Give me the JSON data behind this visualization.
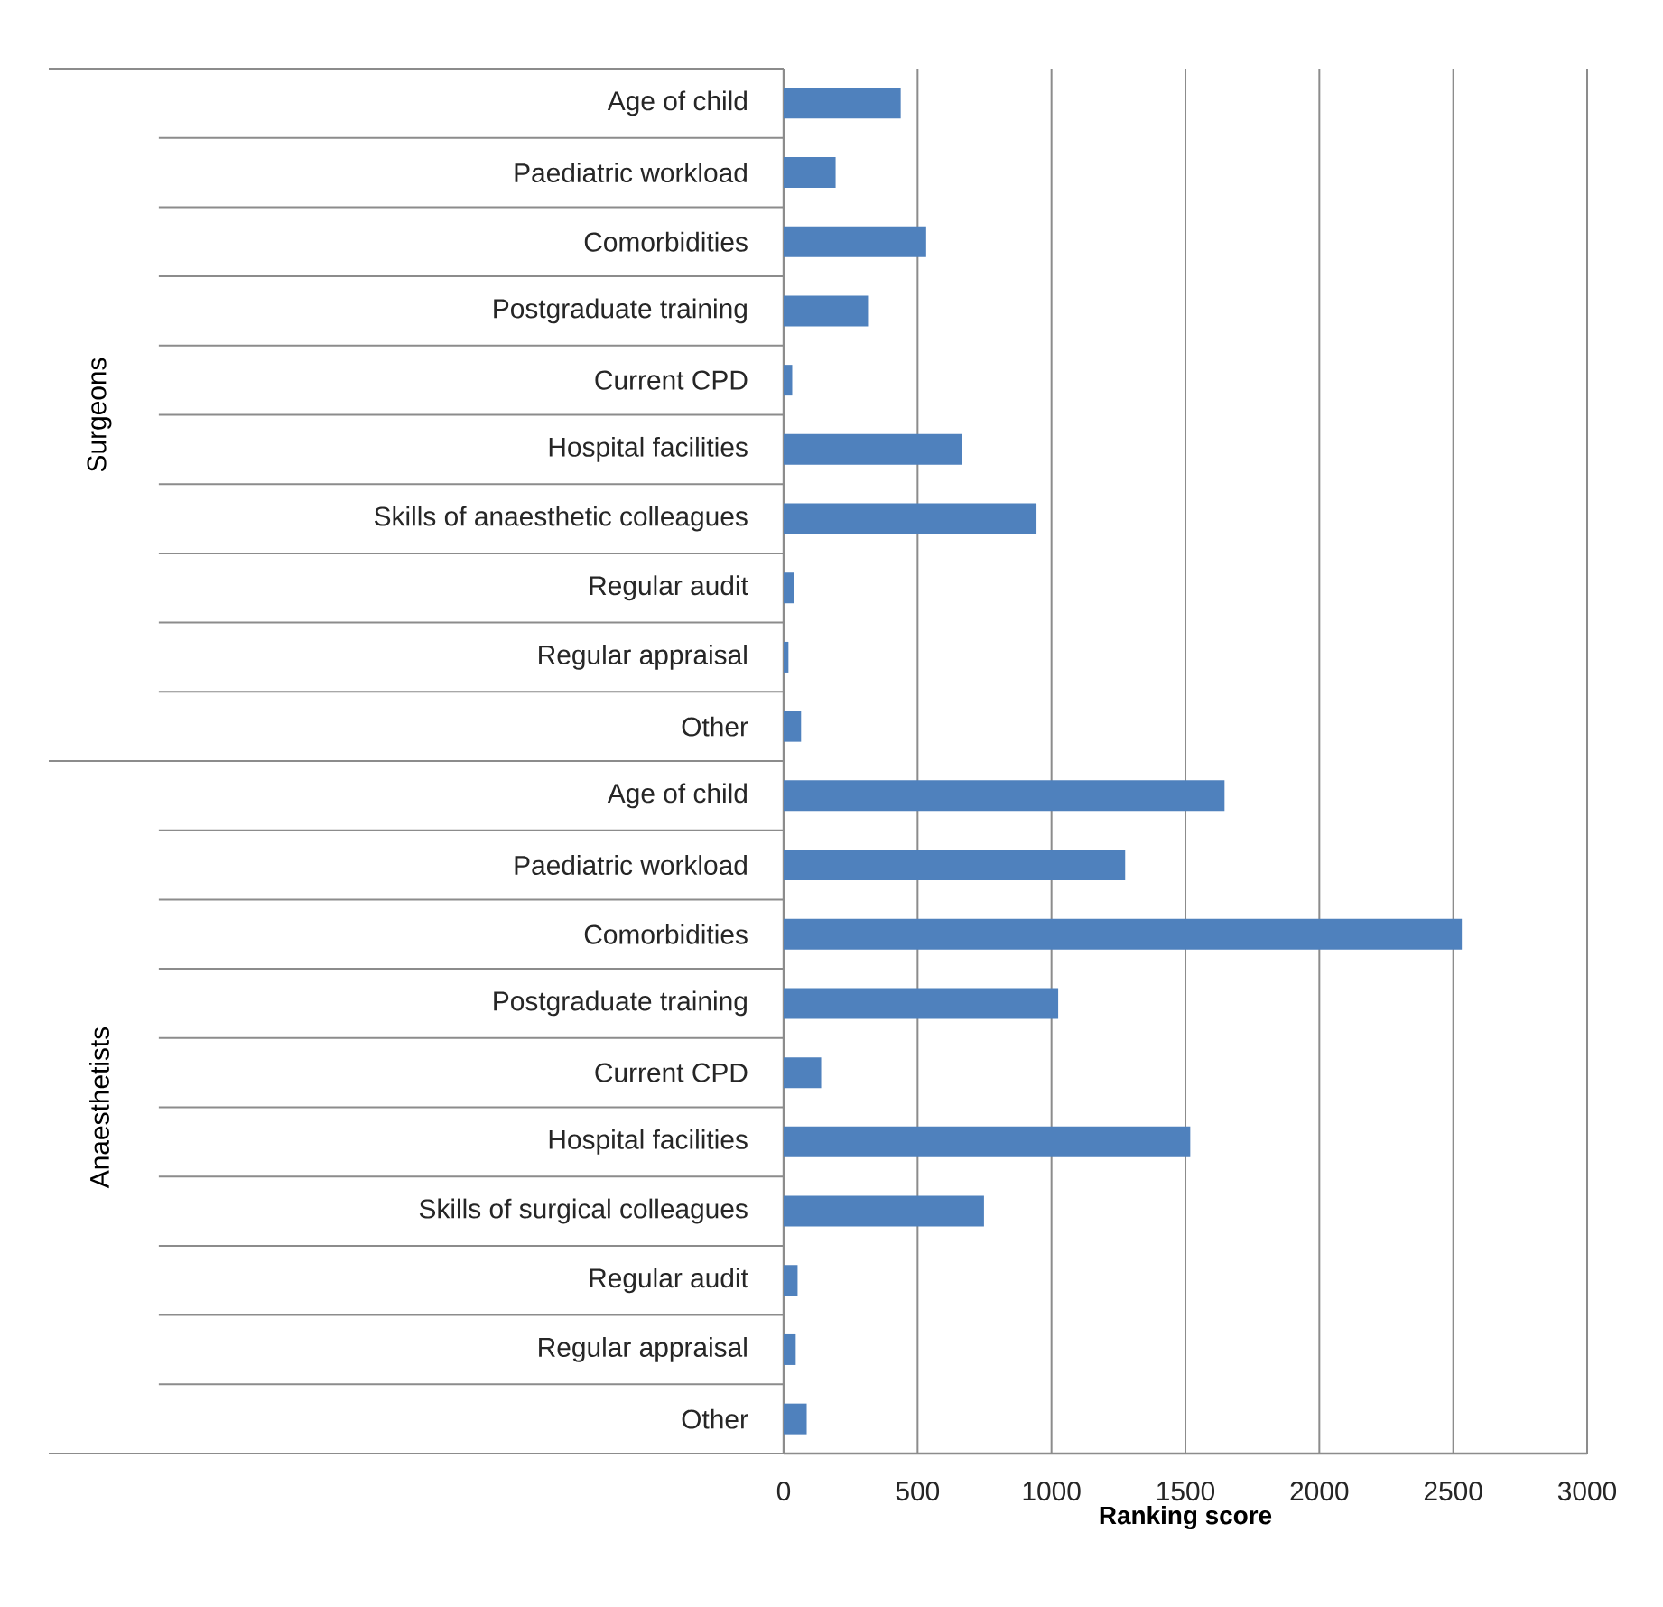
{
  "chart_data": [
    {
      "type": "bar",
      "orientation": "horizontal",
      "ylabel": "Surgeons",
      "categories": [
        "Age of child",
        "Paediatric workload",
        "Comorbidities",
        "Postgraduate training",
        "Current CPD",
        "Hospital facilities",
        "Skills of anaesthetic colleagues",
        "Regular audit",
        "Regular appraisal",
        "Other"
      ],
      "values": [
        437,
        194,
        532,
        315,
        32,
        667,
        944,
        38,
        18,
        65
      ],
      "color": "#4f81bd",
      "xlim": [
        0,
        3000
      ],
      "xticks": [
        0,
        500,
        1000,
        1500,
        2000,
        2500,
        3000
      ],
      "grid": "x",
      "tick_labels": "y"
    },
    {
      "type": "bar",
      "orientation": "horizontal",
      "ylabel": "Anaesthetists",
      "xlabel": "Ranking score",
      "categories": [
        "Age of child",
        "Paediatric workload",
        "Comorbidities",
        "Postgraduate training",
        "Current CPD",
        "Hospital facilities",
        "Skills of surgical colleagues",
        "Regular audit",
        "Regular appraisal",
        "Other"
      ],
      "values": [
        1646,
        1275,
        2532,
        1025,
        140,
        1518,
        748,
        52,
        45,
        86
      ],
      "color": "#4f81bd",
      "xlim": [
        0,
        3000
      ],
      "xticks": [
        0,
        500,
        1000,
        1500,
        2000,
        2500,
        3000
      ],
      "grid": "x"
    }
  ]
}
